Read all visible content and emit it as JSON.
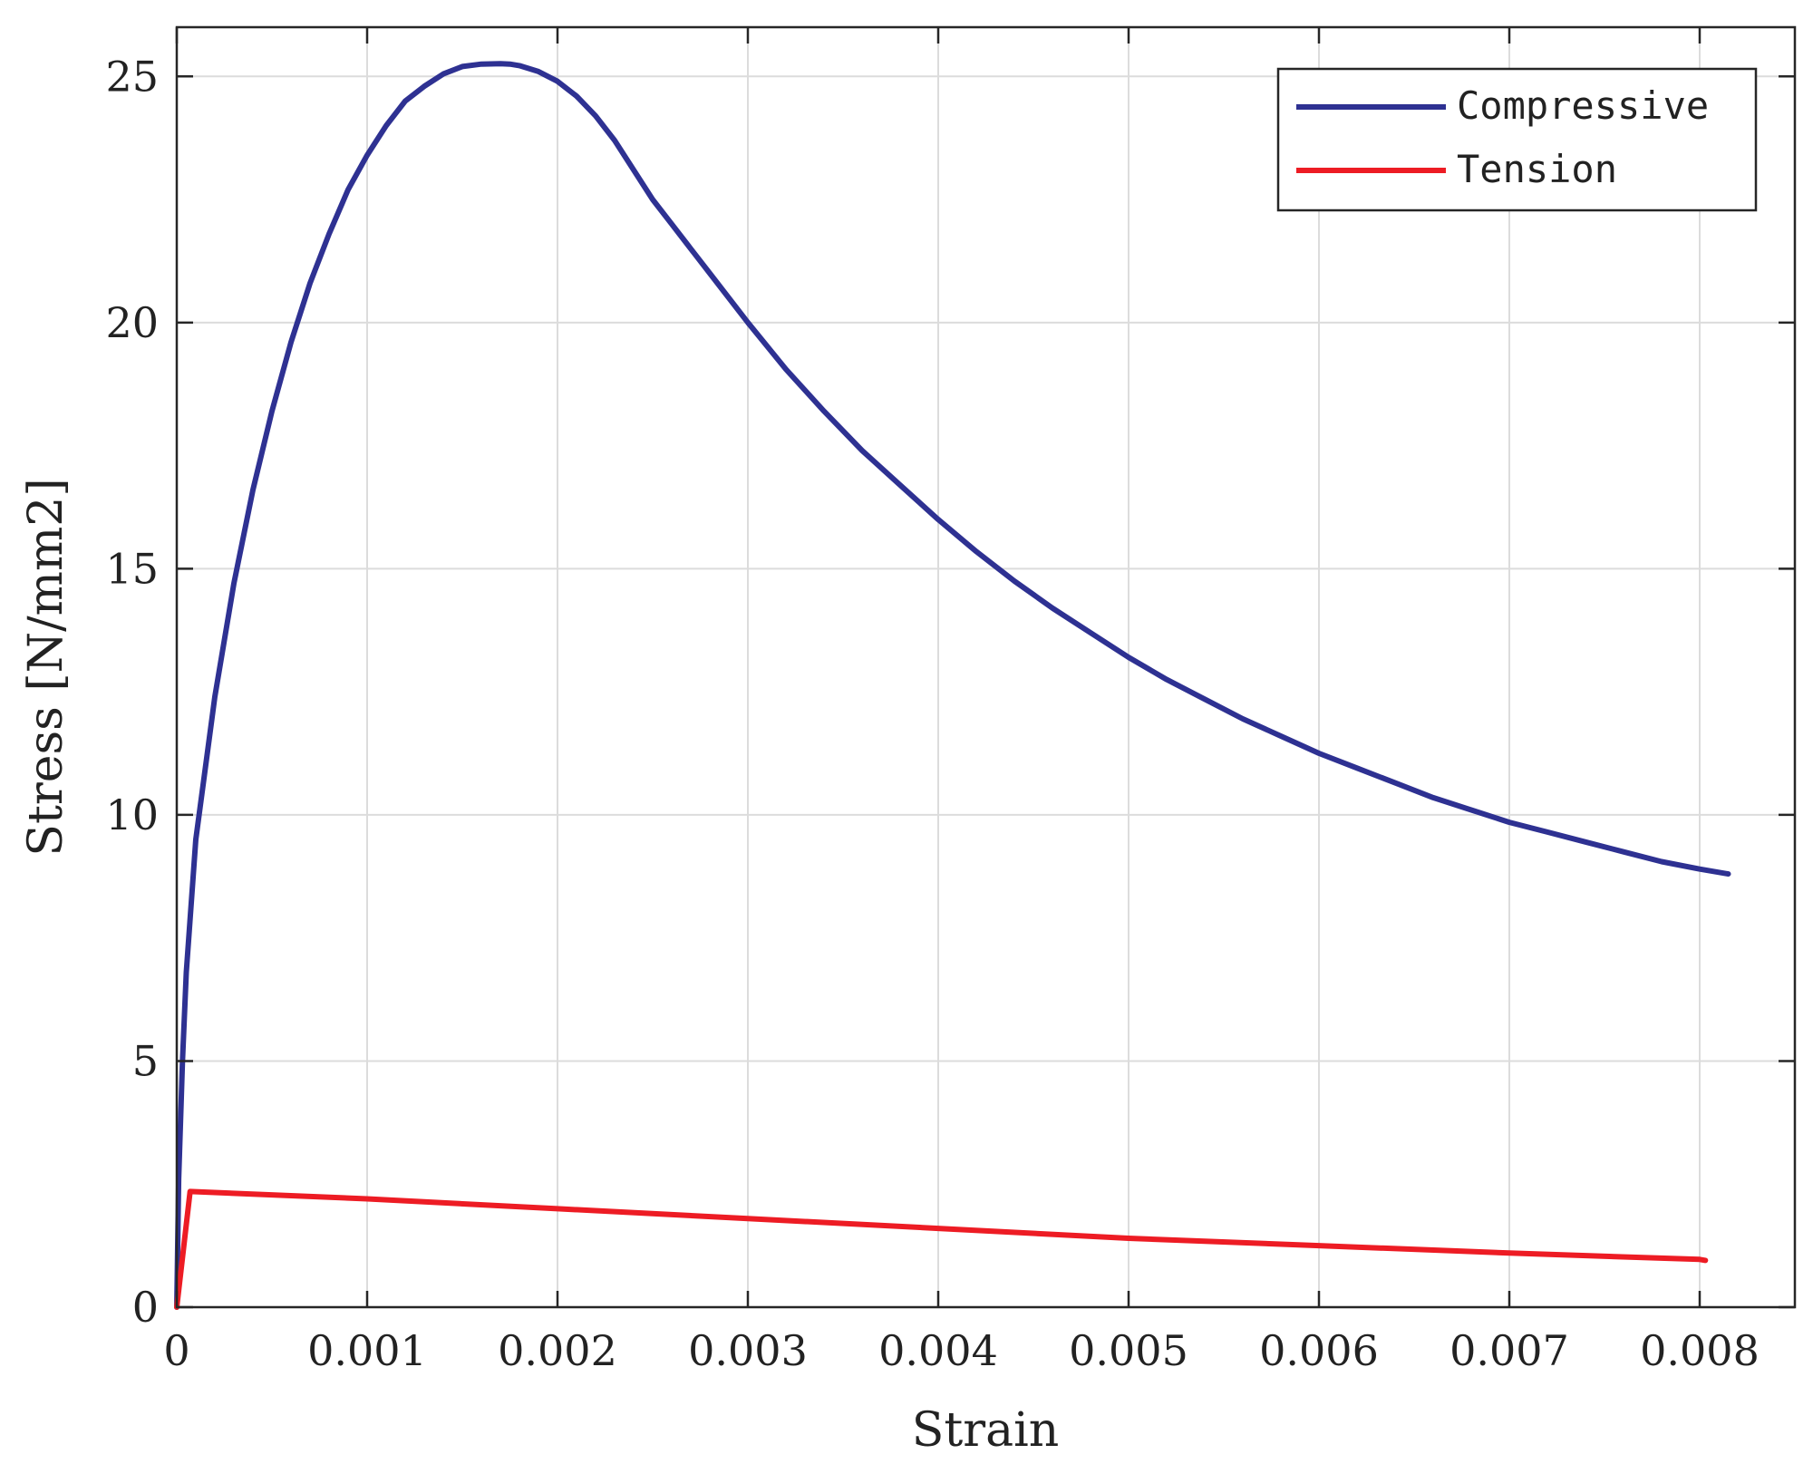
{
  "chart_data": {
    "type": "line",
    "title": "",
    "xlabel": "Strain",
    "ylabel": "Stress [N/mm2]",
    "xlim": [
      0,
      0.0085
    ],
    "ylim": [
      0,
      26
    ],
    "grid": true,
    "legend_position": "top-right",
    "x_ticks": [
      0,
      0.001,
      0.002,
      0.003,
      0.004,
      0.005,
      0.006,
      0.007,
      0.008
    ],
    "x_tick_labels": [
      "0",
      "0.001",
      "0.002",
      "0.003",
      "0.004",
      "0.005",
      "0.006",
      "0.007",
      "0.008"
    ],
    "y_ticks": [
      0,
      5,
      10,
      15,
      20,
      25
    ],
    "y_tick_labels": [
      "0",
      "5",
      "10",
      "15",
      "20",
      "25"
    ],
    "series": [
      {
        "name": "Compressive",
        "color": "#2e3192",
        "x": [
          0,
          1e-05,
          3e-05,
          5e-05,
          0.0001,
          0.0002,
          0.0003,
          0.0004,
          0.0005,
          0.0006,
          0.0007,
          0.0008,
          0.0009,
          0.001,
          0.0011,
          0.0012,
          0.0013,
          0.0014,
          0.0015,
          0.0016,
          0.0017,
          0.00175,
          0.0018,
          0.0019,
          0.002,
          0.0021,
          0.0022,
          0.0023,
          0.0024,
          0.0025,
          0.0026,
          0.0027,
          0.0028,
          0.003,
          0.0032,
          0.0034,
          0.0036,
          0.0038,
          0.004,
          0.0042,
          0.0044,
          0.0046,
          0.0048,
          0.005,
          0.0052,
          0.0054,
          0.0056,
          0.0058,
          0.006,
          0.0062,
          0.0064,
          0.0066,
          0.0068,
          0.007,
          0.0072,
          0.0074,
          0.0076,
          0.0078,
          0.008,
          0.00815
        ],
        "y": [
          0,
          2.6,
          5.0,
          6.8,
          9.5,
          12.4,
          14.7,
          16.6,
          18.2,
          19.6,
          20.8,
          21.8,
          22.7,
          23.4,
          24.0,
          24.5,
          24.8,
          25.05,
          25.2,
          25.25,
          25.26,
          25.25,
          25.22,
          25.1,
          24.9,
          24.6,
          24.2,
          23.7,
          23.1,
          22.5,
          22.0,
          21.5,
          21.0,
          20.0,
          19.05,
          18.2,
          17.4,
          16.7,
          16.0,
          15.35,
          14.75,
          14.2,
          13.7,
          13.2,
          12.75,
          12.35,
          11.95,
          11.6,
          11.25,
          10.95,
          10.65,
          10.35,
          10.1,
          9.85,
          9.65,
          9.45,
          9.25,
          9.05,
          8.9,
          8.8
        ]
      },
      {
        "name": "Tension",
        "color": "#ed1c24",
        "x": [
          0,
          7e-05,
          0.001,
          0.002,
          0.003,
          0.004,
          0.005,
          0.006,
          0.007,
          0.008,
          0.00803
        ],
        "y": [
          0,
          2.35,
          2.2,
          2.0,
          1.8,
          1.6,
          1.4,
          1.25,
          1.1,
          0.97,
          0.95
        ]
      }
    ]
  }
}
